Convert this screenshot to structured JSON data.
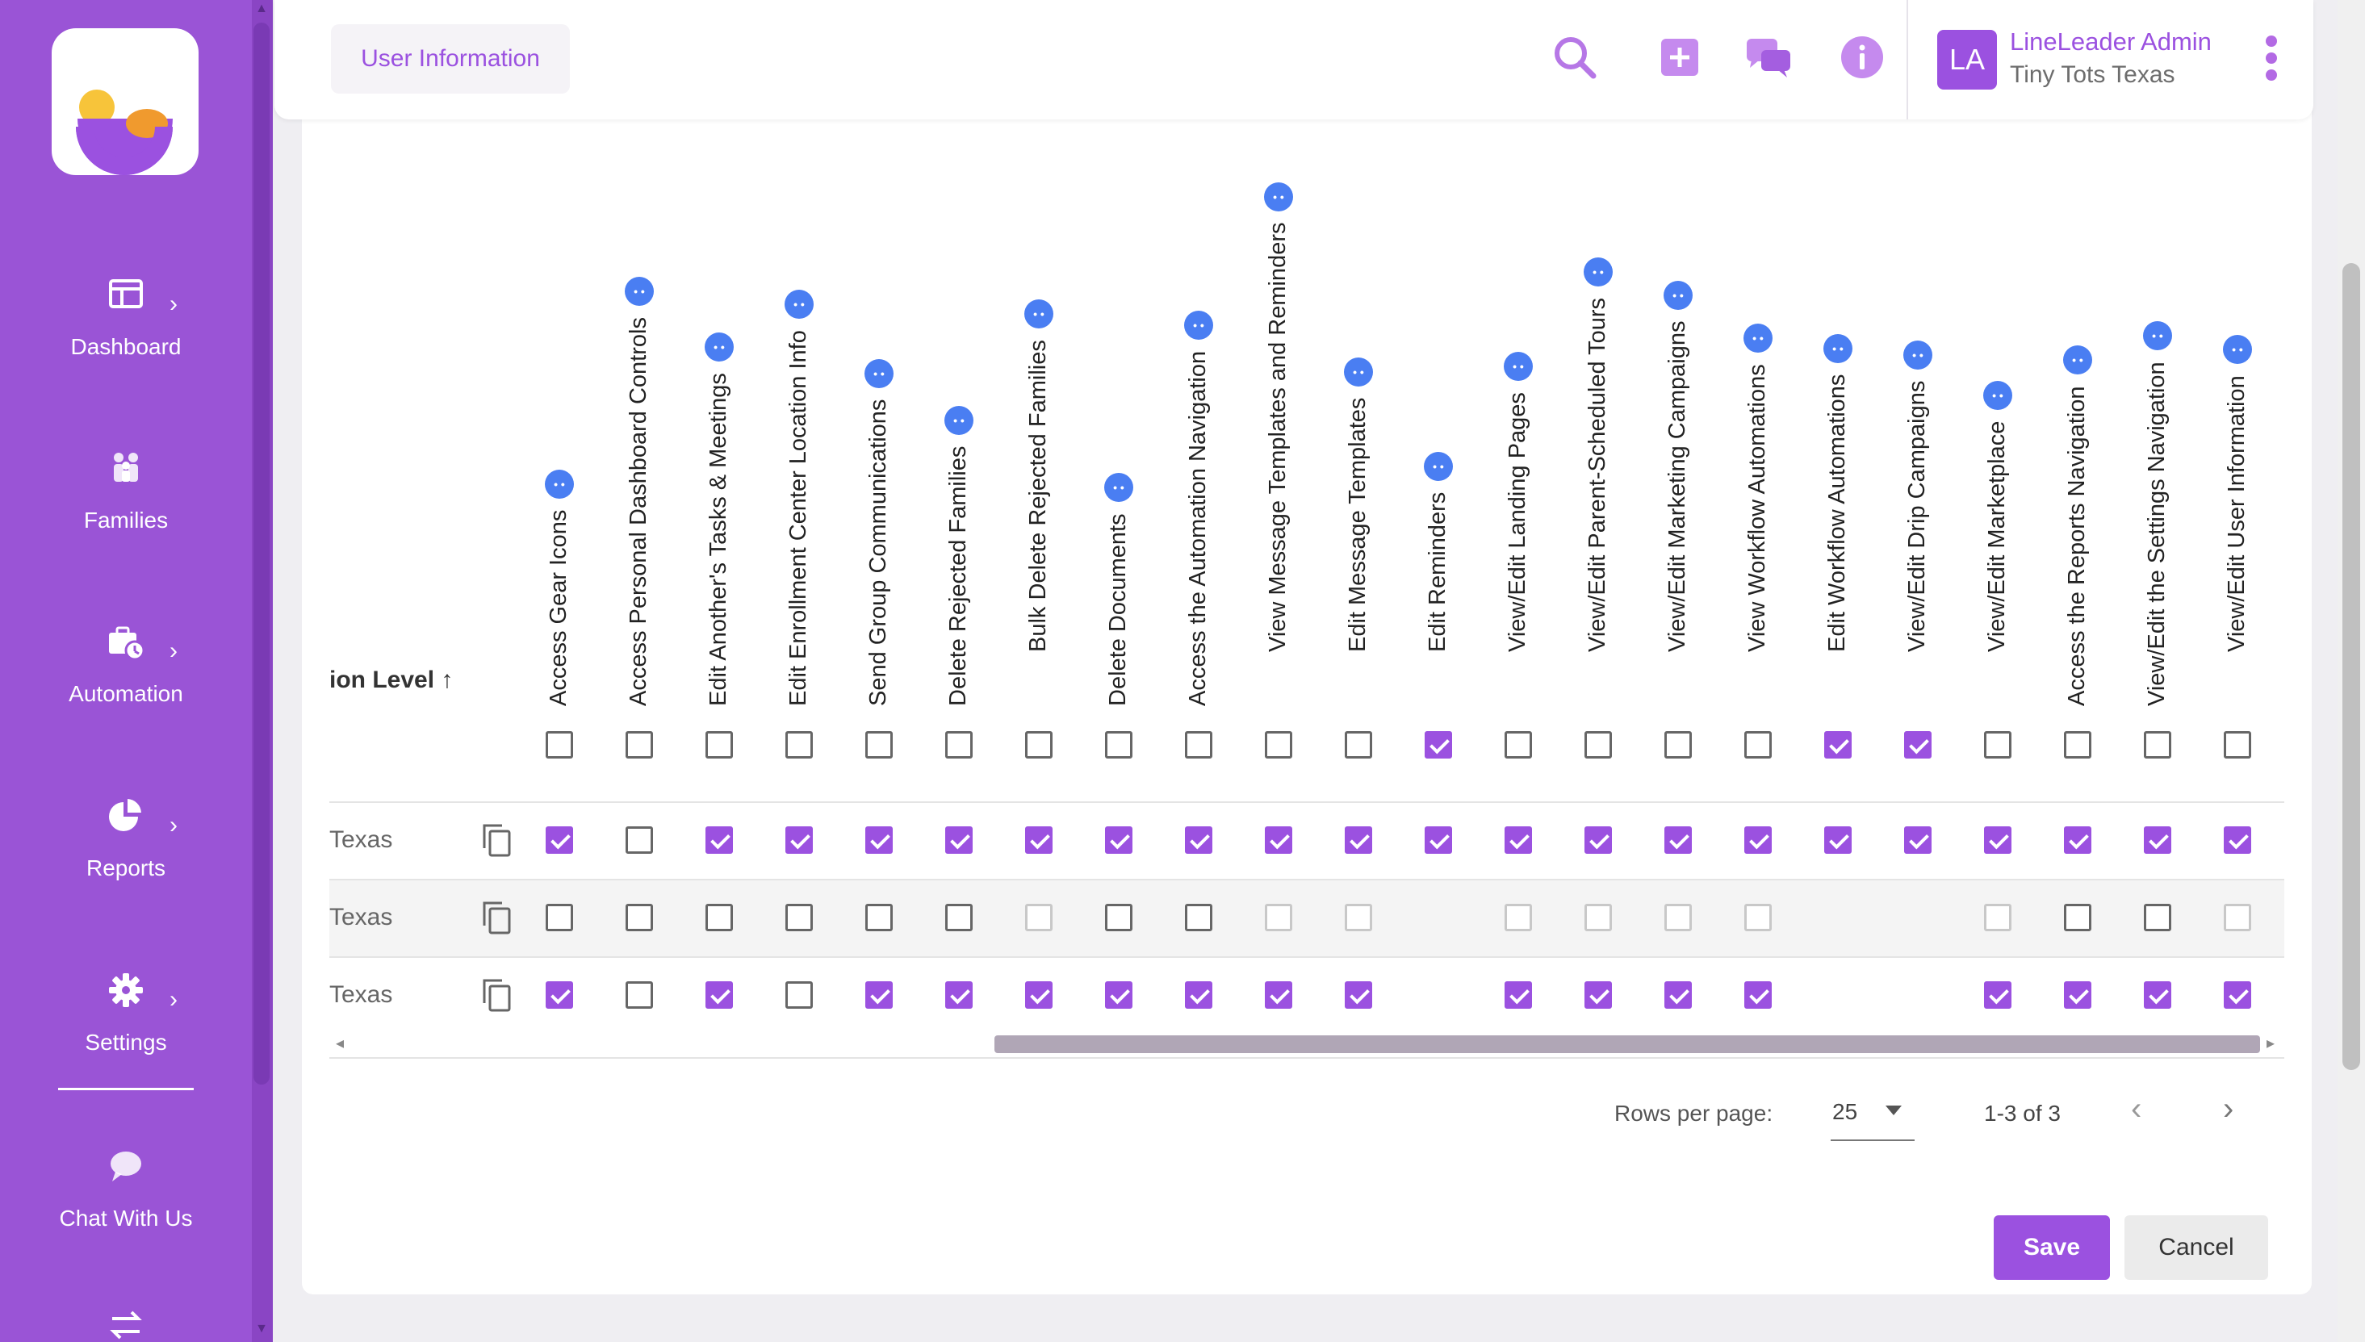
{
  "sidebar": {
    "items": [
      {
        "label": "Dashboard",
        "icon": "dashboard-icon",
        "has_chevron": true
      },
      {
        "label": "Families",
        "icon": "families-icon",
        "has_chevron": false
      },
      {
        "label": "Automation",
        "icon": "automation-icon",
        "has_chevron": true
      },
      {
        "label": "Reports",
        "icon": "pie-chart-icon",
        "has_chevron": true
      },
      {
        "label": "Settings",
        "icon": "gear-icon",
        "has_chevron": true
      },
      {
        "label": "Chat With Us",
        "icon": "chat-bubble-icon",
        "has_chevron": false
      }
    ],
    "bottom_icon": "swap-arrows-icon"
  },
  "header": {
    "tab_label": "User Information",
    "icons": [
      "search-icon",
      "add-icon",
      "chat-icon",
      "info-icon"
    ],
    "user": {
      "initials": "LA",
      "name": "LineLeader Admin",
      "org": "Tiny Tots Texas"
    }
  },
  "table": {
    "first_column_header": "ion Level",
    "sort_indicator": "↑",
    "columns": [
      "Access Gear Icons",
      "Access Personal Dashboard Controls",
      "Edit Another's Tasks & Meetings",
      "Edit Enrollment Center Location Info",
      "Send Group Communications",
      "Delete Rejected Families",
      "Bulk Delete Rejected Families",
      "Delete Documents",
      "Access the Automation Navigation",
      "View Message Templates and Reminders",
      "Edit Message Templates",
      "Edit Reminders",
      "View/Edit Landing Pages",
      "View/Edit Parent-Scheduled Tours",
      "View/Edit Marketing Campaigns",
      "View Workflow Automations",
      "Edit Workflow Automations",
      "View/Edit Drip Campaigns",
      "View/Edit Marketplace",
      "Access the Reports Navigation",
      "View/Edit the Settings Navigation",
      "View/Edit User Information"
    ],
    "header_checks": [
      0,
      0,
      0,
      0,
      0,
      0,
      0,
      0,
      0,
      0,
      0,
      1,
      0,
      0,
      0,
      0,
      1,
      1,
      0,
      0,
      0,
      0
    ],
    "rows": [
      {
        "label": "Texas",
        "checks": [
          1,
          0,
          1,
          1,
          1,
          1,
          1,
          1,
          1,
          1,
          1,
          1,
          1,
          1,
          1,
          1,
          1,
          1,
          1,
          1,
          1,
          1
        ]
      },
      {
        "label": "Texas",
        "checks": [
          0,
          0,
          0,
          0,
          0,
          0,
          "d",
          0,
          0,
          "d",
          "d",
          null,
          "d",
          "d",
          "d",
          "d",
          null,
          null,
          "d",
          0,
          0,
          "d"
        ]
      },
      {
        "label": "Texas",
        "checks": [
          1,
          0,
          1,
          0,
          1,
          1,
          1,
          1,
          1,
          1,
          1,
          null,
          1,
          1,
          1,
          1,
          null,
          null,
          1,
          1,
          1,
          1
        ]
      }
    ]
  },
  "pagination": {
    "rows_per_page_label": "Rows per page:",
    "rows_per_page_value": "25",
    "range": "1-3 of 3"
  },
  "actions": {
    "save_label": "Save",
    "cancel_label": "Cancel"
  },
  "colors": {
    "brand": "#9b51e0",
    "sidebar": "#9a54d6",
    "info_dot": "#4a7ef2"
  }
}
